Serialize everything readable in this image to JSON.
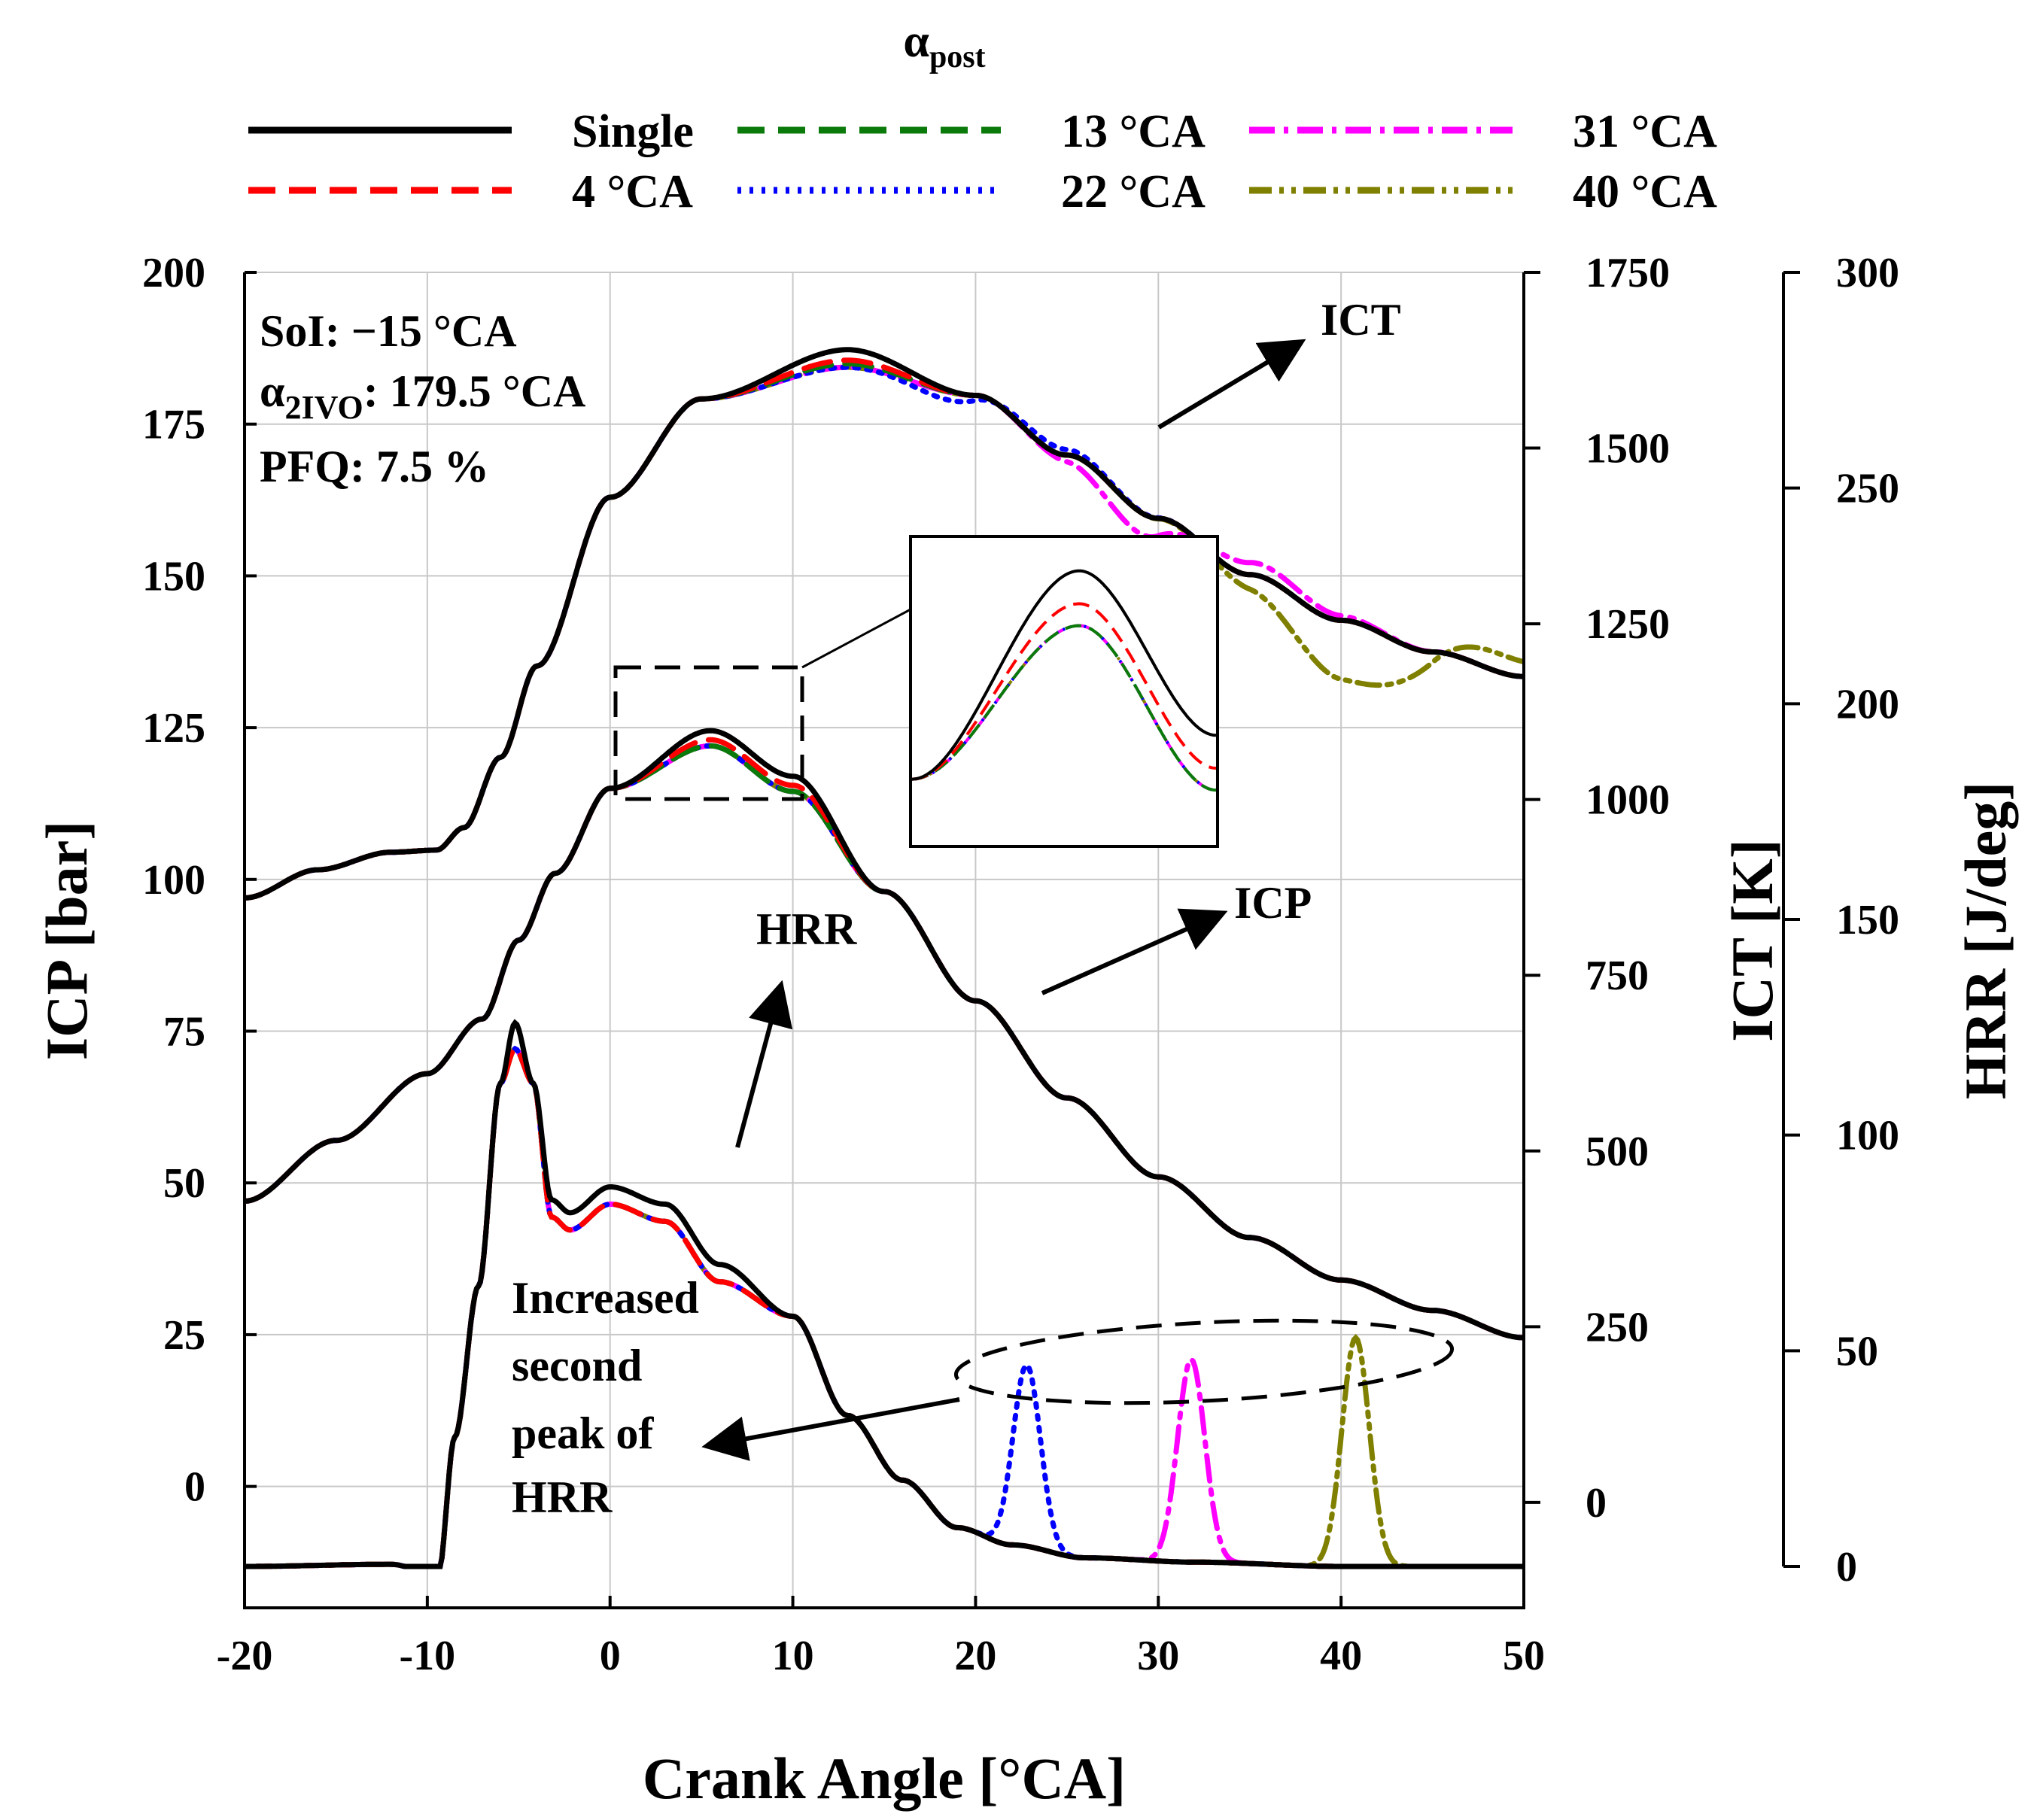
{
  "chart_data": {
    "type": "line",
    "xlabel": "Crank Angle [°CA]",
    "ylabel_left": "ICP [bar]",
    "ylabel_right1": "ICT [K]",
    "ylabel_right2": "HRR [J/deg]",
    "xlim": [
      -20,
      50
    ],
    "xticks": [
      "-20",
      "-10",
      "0",
      "10",
      "20",
      "30",
      "40",
      "50"
    ],
    "ylim_left": [
      -20,
      200
    ],
    "yticks_left": [
      "0",
      "25",
      "50",
      "75",
      "100",
      "125",
      "150",
      "175",
      "200"
    ],
    "ylim_right1": [
      -150,
      1750
    ],
    "yticks_right1": [
      "0",
      "250",
      "500",
      "750",
      "1000",
      "1250",
      "1500",
      "1750"
    ],
    "ylim_right2": [
      0,
      300
    ],
    "yticks_right2": [
      "0",
      "50",
      "100",
      "150",
      "200",
      "250",
      "300"
    ],
    "legend_title_main": "α",
    "legend_title_sub": "post",
    "annotations": {
      "params": [
        {
          "text": "SoI: −15 °CA"
        },
        {
          "main": "α",
          "sub": "2IVO",
          "rest": ": 179.5 °CA"
        },
        {
          "text": "PFQ: 7.5 %"
        }
      ],
      "icp_label": "ICP",
      "ict_label": "ICT",
      "hrr_label": "HRR",
      "second_peak": [
        "Increased",
        "second",
        "peak of",
        "HRR"
      ]
    },
    "series": [
      {
        "name": "Single",
        "color": "#000000",
        "dash": "solid",
        "post": null,
        "icp_peak": 124.5,
        "ict_peak": 1640,
        "hrr_main_peak": 126,
        "hrr_second_peak": 90
      },
      {
        "name": "4 °CA",
        "color": "#ff0000",
        "dash": "dashed",
        "post": 4,
        "icp_peak": 123.0,
        "ict_peak": 1625,
        "hrr_main_peak": 120,
        "hrr_second_peak": 86,
        "post_peak_hrr": 0
      },
      {
        "name": "13 °CA",
        "color": "#0a7a0a",
        "dash": "dashed",
        "post": 13,
        "icp_peak": 122.0,
        "ict_peak": 1620,
        "hrr_main_peak": 120,
        "hrr_second_peak": 86,
        "post_peak_hrr": 0
      },
      {
        "name": "22 °CA",
        "color": "#0000ff",
        "dash": "dotted",
        "post": 22,
        "icp_peak": 122.0,
        "ict_peak": 1615,
        "hrr_main_peak": 120,
        "hrr_second_peak": 86,
        "post_peak_hrr": 42
      },
      {
        "name": "31 °CA",
        "color": "#ff00ff",
        "dash": "dash-dot",
        "post": 31,
        "icp_peak": 122.0,
        "ict_peak": 1615,
        "hrr_main_peak": 120,
        "hrr_second_peak": 86,
        "post_peak_hrr": 47
      },
      {
        "name": "40 °CA",
        "color": "#808000",
        "dash": "dash-dot-dot",
        "post": 40,
        "icp_peak": 122.0,
        "ict_peak": 1615,
        "hrr_main_peak": 120,
        "hrr_second_peak": 86,
        "post_peak_hrr": 53
      }
    ]
  }
}
